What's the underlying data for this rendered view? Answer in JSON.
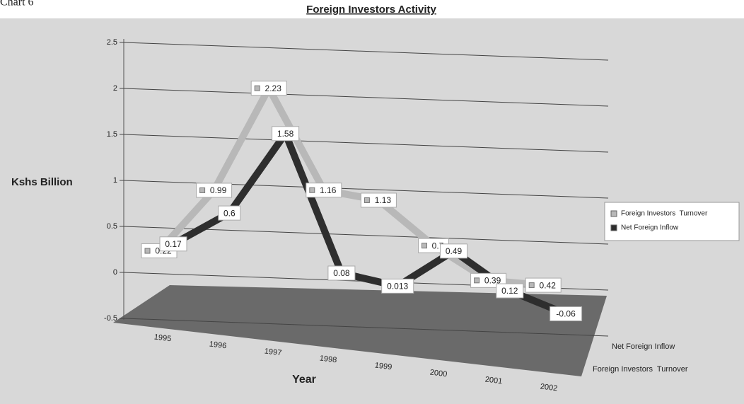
{
  "chart_data": {
    "type": "line3d",
    "corner_text": "Chart 6",
    "title": "Foreign Investors Activity",
    "y_label": "Kshs Billion",
    "x_label": "Year",
    "categories": [
      "1995",
      "1996",
      "1997",
      "1998",
      "1999",
      "2000",
      "2001",
      "2002"
    ],
    "series": [
      {
        "name": "Foreign Investors  Turnover",
        "color": "#b8b8b8",
        "values": [
          0.22,
          0.99,
          2.23,
          1.16,
          1.13,
          0.7,
          0.39,
          0.42
        ]
      },
      {
        "name": "Net Foreign Inflow",
        "color": "#2e2e2e",
        "values": [
          0.17,
          0.6,
          1.58,
          0.08,
          0.013,
          0.49,
          0.12,
          -0.06
        ]
      }
    ],
    "ylim": [
      -0.5,
      2.5
    ],
    "yticks": [
      -0.5,
      0,
      0.5,
      1,
      1.5,
      2,
      2.5
    ],
    "grid": true,
    "legend": "right"
  }
}
